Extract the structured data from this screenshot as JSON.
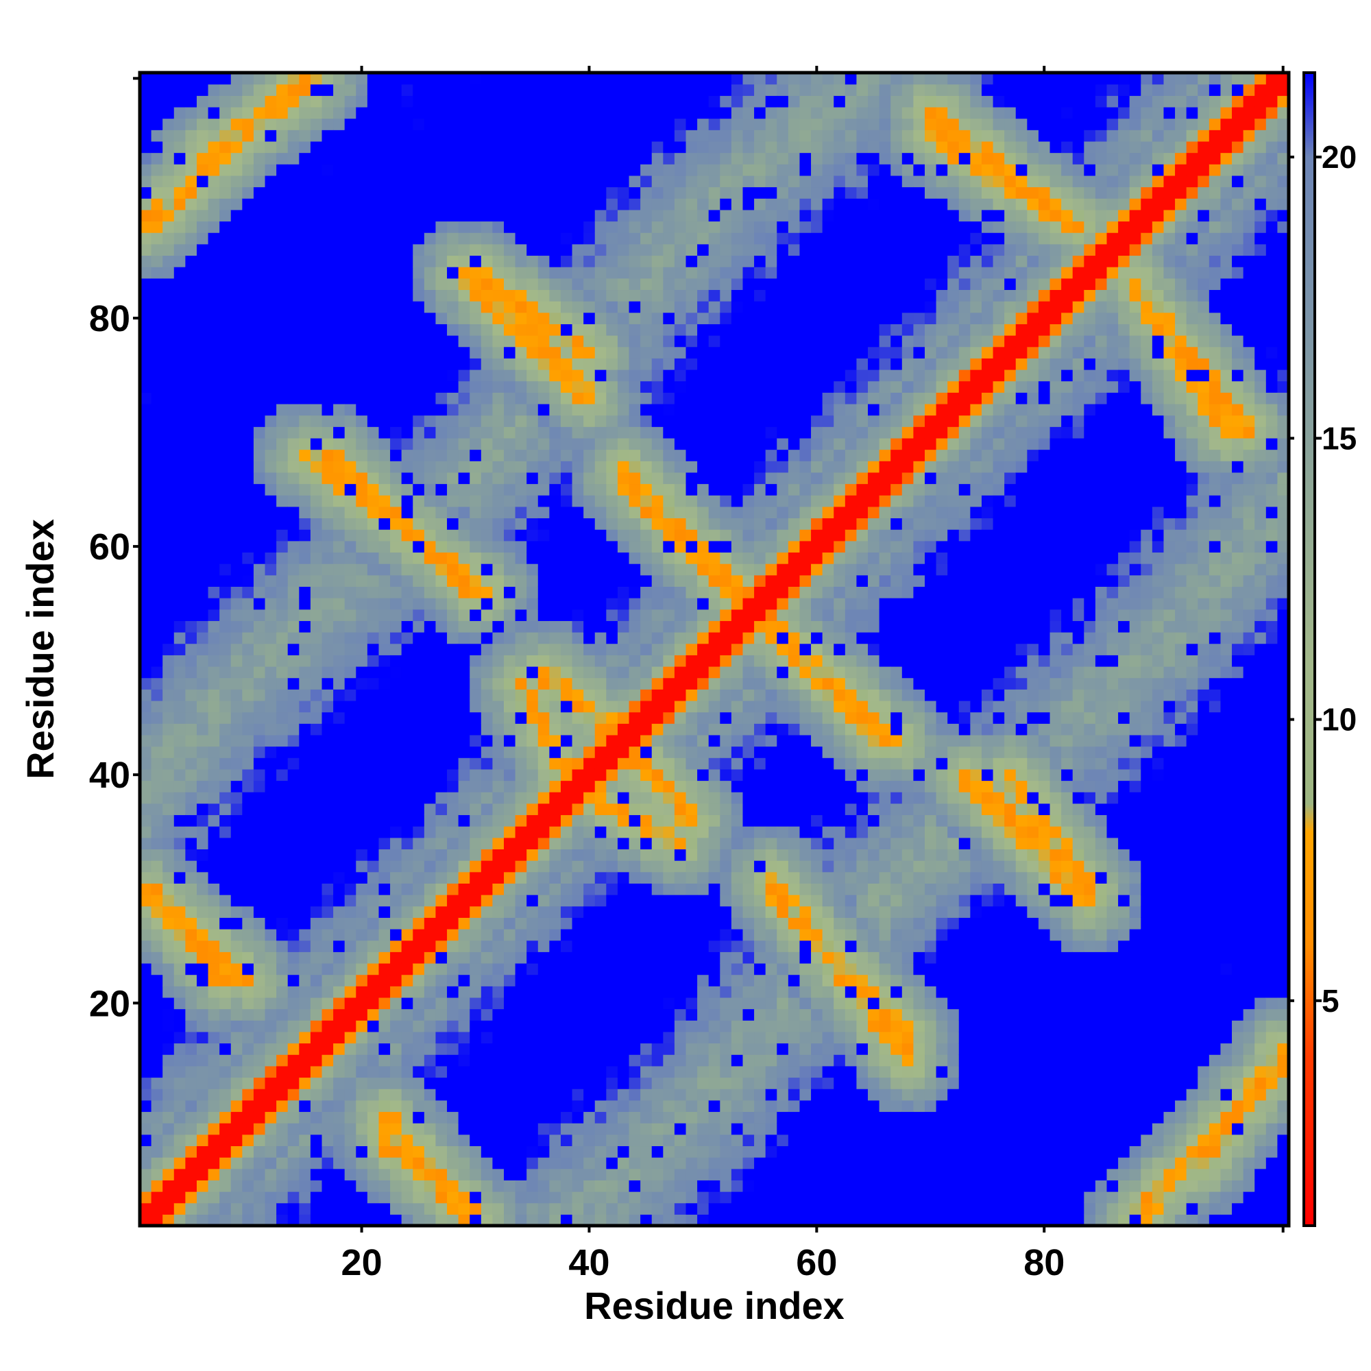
{
  "chart_data": {
    "type": "heatmap",
    "title": "",
    "xlabel": "Residue index",
    "ylabel": "Residue index",
    "n": 101,
    "xlim": [
      1,
      101
    ],
    "ylim": [
      1,
      101
    ],
    "x_ticks": [
      20,
      40,
      60,
      80
    ],
    "y_ticks": [
      20,
      40,
      60,
      80
    ],
    "x_tick_labels": [
      "20",
      "40",
      "60",
      "80"
    ],
    "y_tick_labels": [
      "20",
      "40",
      "60",
      "80"
    ],
    "colorbar": {
      "range": [
        1,
        21.5
      ],
      "ticks": [
        5,
        10,
        15,
        20
      ],
      "tick_labels": [
        "5",
        "10",
        "15",
        "20"
      ],
      "stops": [
        {
          "value": 1,
          "color": "#ff0000"
        },
        {
          "value": 4,
          "color": "#ff3c00"
        },
        {
          "value": 6,
          "color": "#ff8c00"
        },
        {
          "value": 8,
          "color": "#ffa500"
        },
        {
          "value": 8.5,
          "color": "#9db581"
        },
        {
          "value": 11,
          "color": "#a3b88a"
        },
        {
          "value": 14,
          "color": "#8fa895"
        },
        {
          "value": 17,
          "color": "#7c95a8"
        },
        {
          "value": 20,
          "color": "#6d85b6"
        },
        {
          "value": 21.5,
          "color": "#0000ff"
        }
      ]
    },
    "description": "Pairwise residue distance map (symmetric): red main diagonal, orange anti-diagonal bands, blue regions for large distances",
    "diagonal_value": 1.5,
    "contact_bands": [
      {
        "from": [
          1,
          1
        ],
        "to": [
          101,
          101
        ],
        "value": 1.5
      },
      {
        "from": [
          22,
          8
        ],
        "to": [
          30,
          1
        ],
        "value": 7
      },
      {
        "from": [
          1,
          30
        ],
        "to": [
          10,
          22
        ],
        "value": 7
      },
      {
        "from": [
          1,
          88
        ],
        "to": [
          15,
          101
        ],
        "value": 7
      },
      {
        "from": [
          15,
          68
        ],
        "to": [
          31,
          56
        ],
        "value": 7
      },
      {
        "from": [
          29,
          84
        ],
        "to": [
          40,
          73
        ],
        "value": 7
      },
      {
        "from": [
          36,
          49
        ],
        "to": [
          42,
          44
        ],
        "value": 7
      },
      {
        "from": [
          40,
          38
        ],
        "to": [
          48,
          34
        ],
        "value": 7
      },
      {
        "from": [
          43,
          66
        ],
        "to": [
          54,
          55
        ],
        "value": 7
      },
      {
        "from": [
          56,
          53
        ],
        "to": [
          67,
          43
        ],
        "value": 7
      },
      {
        "from": [
          56,
          30
        ],
        "to": [
          68,
          17
        ],
        "value": 7
      },
      {
        "from": [
          70,
          96
        ],
        "to": [
          83,
          88
        ],
        "value": 7
      },
      {
        "from": [
          77,
          40
        ],
        "to": [
          84,
          30
        ],
        "value": 7
      },
      {
        "from": [
          90,
          80
        ],
        "to": [
          98,
          70
        ],
        "value": 7
      },
      {
        "from": [
          94,
          6
        ],
        "to": [
          101,
          16
        ],
        "value": 7
      }
    ]
  }
}
